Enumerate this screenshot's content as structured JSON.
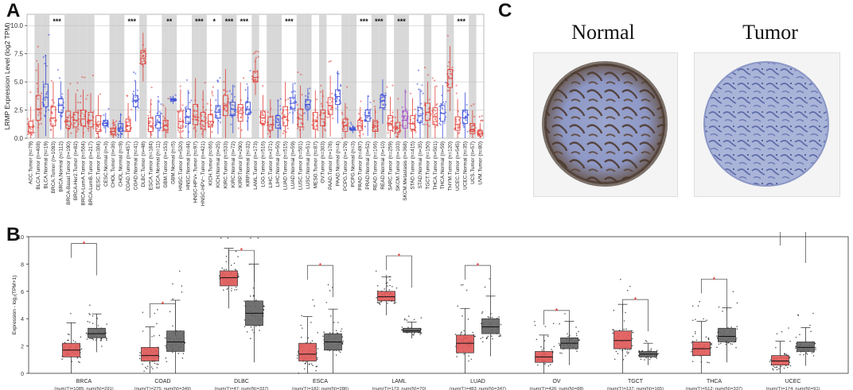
{
  "panels": {
    "A": "A",
    "B": "B",
    "C": "C"
  },
  "chart_data": [
    {
      "type": "box",
      "panel": "A",
      "ylabel": "LRMP Expression Level (log2 TPM)",
      "ylim": [
        0,
        11
      ],
      "yticks": [
        "0.0",
        "2.5",
        "5.0",
        "7.5",
        "10.0"
      ],
      "groups": [
        {
          "label": "ACC.Tumor (n=79)",
          "kind": "tumor",
          "median": 1.0,
          "q1": 0.5,
          "q3": 1.5,
          "shade": false,
          "sig": ""
        },
        {
          "label": "BLCA.Tumor (n=408)",
          "kind": "tumor",
          "median": 2.6,
          "q1": 1.6,
          "q3": 3.8,
          "shade": true,
          "sig": ""
        },
        {
          "label": "BLCA.Normal (n=19)",
          "kind": "normal",
          "median": 3.6,
          "q1": 2.8,
          "q3": 4.8,
          "shade": true,
          "sig": ""
        },
        {
          "label": "BRCA.Tumor (n=1093)",
          "kind": "tumor",
          "median": 1.8,
          "q1": 1.1,
          "q3": 2.8,
          "shade": false,
          "sig": "***"
        },
        {
          "label": "BRCA.Normal (n=112)",
          "kind": "normal",
          "median": 2.9,
          "q1": 2.3,
          "q3": 3.5,
          "shade": false,
          "sig": ""
        },
        {
          "label": "BRCA-Basal.Tumor (n=190)",
          "kind": "tumor",
          "median": 1.5,
          "q1": 0.9,
          "q3": 2.4,
          "shade": true,
          "sig": ""
        },
        {
          "label": "BRCA-Her2.Tumor (n=82)",
          "kind": "tumor",
          "median": 1.6,
          "q1": 1.0,
          "q3": 2.3,
          "shade": true,
          "sig": ""
        },
        {
          "label": "BRCA-LumA.Tumor (n=564)",
          "kind": "tumor",
          "median": 1.7,
          "q1": 1.1,
          "q3": 2.5,
          "shade": true,
          "sig": ""
        },
        {
          "label": "BRCA-LumB.Tumor (n=217)",
          "kind": "tumor",
          "median": 1.6,
          "q1": 1.0,
          "q3": 2.3,
          "shade": true,
          "sig": ""
        },
        {
          "label": "CESC.Tumor (n=304)",
          "kind": "tumor",
          "median": 1.2,
          "q1": 0.6,
          "q3": 2.0,
          "shade": false,
          "sig": ""
        },
        {
          "label": "CESC.Normal (n=3)",
          "kind": "normal",
          "median": 1.3,
          "q1": 1.1,
          "q3": 1.6,
          "shade": false,
          "sig": ""
        },
        {
          "label": "CHOL.Tumor (n=36)",
          "kind": "tumor",
          "median": 0.6,
          "q1": 0.3,
          "q3": 0.9,
          "shade": true,
          "sig": ""
        },
        {
          "label": "CHOL.Normal (n=9)",
          "kind": "normal",
          "median": 0.9,
          "q1": 0.6,
          "q3": 1.3,
          "shade": true,
          "sig": ""
        },
        {
          "label": "COAD.Tumor (n=457)",
          "kind": "tumor",
          "median": 1.1,
          "q1": 0.6,
          "q3": 1.7,
          "shade": false,
          "sig": "***"
        },
        {
          "label": "COAD.Normal (n=41)",
          "kind": "normal",
          "median": 3.3,
          "q1": 2.8,
          "q3": 3.8,
          "shade": false,
          "sig": ""
        },
        {
          "label": "DLBC.Tumor (n=48)",
          "kind": "tumor",
          "median": 7.1,
          "q1": 6.6,
          "q3": 7.8,
          "shade": true,
          "sig": ""
        },
        {
          "label": "ESCA.Tumor (n=184)",
          "kind": "tumor",
          "median": 1.1,
          "q1": 0.6,
          "q3": 1.8,
          "shade": false,
          "sig": ""
        },
        {
          "label": "ESCA.Normal (n=11)",
          "kind": "normal",
          "median": 1.4,
          "q1": 0.9,
          "q3": 2.0,
          "shade": false,
          "sig": ""
        },
        {
          "label": "GBM.Tumor (n=153)",
          "kind": "tumor",
          "median": 1.1,
          "q1": 0.7,
          "q3": 1.6,
          "shade": true,
          "sig": "**"
        },
        {
          "label": "GBM.Normal (n=5)",
          "kind": "normal",
          "median": 3.4,
          "q1": 3.3,
          "q3": 3.5,
          "shade": true,
          "sig": ""
        },
        {
          "label": "HNSC.Tumor (n=520)",
          "kind": "tumor",
          "median": 1.5,
          "q1": 0.9,
          "q3": 2.4,
          "shade": false,
          "sig": ""
        },
        {
          "label": "HNSC.Normal (n=44)",
          "kind": "normal",
          "median": 1.9,
          "q1": 1.3,
          "q3": 2.6,
          "shade": false,
          "sig": ""
        },
        {
          "label": "HNSC-HPV+.Tumor (n=97)",
          "kind": "tumor",
          "median": 1.9,
          "q1": 1.2,
          "q3": 3.0,
          "shade": true,
          "sig": "***"
        },
        {
          "label": "HNSC-HPV−.Tumor (n=421)",
          "kind": "tumor",
          "median": 1.5,
          "q1": 0.8,
          "q3": 2.3,
          "shade": true,
          "sig": ""
        },
        {
          "label": "KICH.Tumor (n=66)",
          "kind": "tumor",
          "median": 1.5,
          "q1": 1.0,
          "q3": 2.1,
          "shade": false,
          "sig": "*"
        },
        {
          "label": "KICH.Normal (n=25)",
          "kind": "normal",
          "median": 2.3,
          "q1": 1.8,
          "q3": 2.9,
          "shade": false,
          "sig": ""
        },
        {
          "label": "KIRC.Tumor (n=533)",
          "kind": "tumor",
          "median": 2.9,
          "q1": 2.0,
          "q3": 3.8,
          "shade": true,
          "sig": "***"
        },
        {
          "label": "KIRC.Normal (n=72)",
          "kind": "normal",
          "median": 2.6,
          "q1": 2.0,
          "q3": 3.2,
          "shade": true,
          "sig": ""
        },
        {
          "label": "KIRP.Tumor (n=290)",
          "kind": "tumor",
          "median": 2.2,
          "q1": 1.5,
          "q3": 3.0,
          "shade": false,
          "sig": "***"
        },
        {
          "label": "KIRP.Normal (n=32)",
          "kind": "normal",
          "median": 2.6,
          "q1": 2.1,
          "q3": 3.2,
          "shade": false,
          "sig": ""
        },
        {
          "label": "LAML.Tumor (n=173)",
          "kind": "tumor",
          "median": 5.4,
          "q1": 5.0,
          "q3": 5.9,
          "shade": true,
          "sig": ""
        },
        {
          "label": "LGG.Tumor (n=516)",
          "kind": "tumor",
          "median": 1.8,
          "q1": 1.3,
          "q3": 2.4,
          "shade": false,
          "sig": ""
        },
        {
          "label": "LIHC.Tumor (n=371)",
          "kind": "tumor",
          "median": 1.2,
          "q1": 0.7,
          "q3": 1.9,
          "shade": true,
          "sig": ""
        },
        {
          "label": "LIHC.Normal (n=50)",
          "kind": "normal",
          "median": 1.4,
          "q1": 0.9,
          "q3": 2.0,
          "shade": true,
          "sig": ""
        },
        {
          "label": "LUAD.Tumor (n=515)",
          "kind": "tumor",
          "median": 1.9,
          "q1": 1.1,
          "q3": 2.8,
          "shade": false,
          "sig": "***"
        },
        {
          "label": "LUAD.Normal (n=59)",
          "kind": "normal",
          "median": 3.1,
          "q1": 2.6,
          "q3": 3.6,
          "shade": false,
          "sig": ""
        },
        {
          "label": "LUSC.Tumor (n=501)",
          "kind": "tumor",
          "median": 1.7,
          "q1": 1.0,
          "q3": 2.6,
          "shade": true,
          "sig": ""
        },
        {
          "label": "LUSC.Normal (n=51)",
          "kind": "normal",
          "median": 3.0,
          "q1": 2.6,
          "q3": 3.4,
          "shade": true,
          "sig": ""
        },
        {
          "label": "MESO.Tumor (n=87)",
          "kind": "tumor",
          "median": 1.5,
          "q1": 0.8,
          "q3": 2.3,
          "shade": false,
          "sig": ""
        },
        {
          "label": "OV.Tumor (n=303)",
          "kind": "tumor",
          "median": 1.7,
          "q1": 1.1,
          "q3": 2.5,
          "shade": true,
          "sig": ""
        },
        {
          "label": "PAAD.Tumor (n=178)",
          "kind": "tumor",
          "median": 2.9,
          "q1": 2.1,
          "q3": 3.6,
          "shade": false,
          "sig": ""
        },
        {
          "label": "PAAD.Normal (n=4)",
          "kind": "normal",
          "median": 3.7,
          "q1": 3.0,
          "q3": 4.3,
          "shade": false,
          "sig": ""
        },
        {
          "label": "PCPG.Tumor (n=179)",
          "kind": "tumor",
          "median": 1.1,
          "q1": 0.6,
          "q3": 1.7,
          "shade": true,
          "sig": ""
        },
        {
          "label": "PCPG.Normal (n=3)",
          "kind": "normal",
          "median": 0.8,
          "q1": 0.7,
          "q3": 0.9,
          "shade": true,
          "sig": ""
        },
        {
          "label": "PRAD.Tumor (n=497)",
          "kind": "tumor",
          "median": 1.1,
          "q1": 0.7,
          "q3": 1.6,
          "shade": false,
          "sig": "***"
        },
        {
          "label": "PRAD.Normal (n=52)",
          "kind": "normal",
          "median": 2.0,
          "q1": 1.5,
          "q3": 2.5,
          "shade": false,
          "sig": ""
        },
        {
          "label": "READ.Tumor (n=166)",
          "kind": "tumor",
          "median": 1.0,
          "q1": 0.6,
          "q3": 1.5,
          "shade": true,
          "sig": "***"
        },
        {
          "label": "READ.Normal (n=10)",
          "kind": "normal",
          "median": 3.3,
          "q1": 2.7,
          "q3": 3.8,
          "shade": true,
          "sig": ""
        },
        {
          "label": "SARC.Tumor (n=259)",
          "kind": "tumor",
          "median": 1.3,
          "q1": 0.7,
          "q3": 2.0,
          "shade": false,
          "sig": ""
        },
        {
          "label": "SKCM.Tumor (n=103)",
          "kind": "tumor",
          "median": 0.9,
          "q1": 0.5,
          "q3": 1.4,
          "shade": true,
          "sig": "***"
        },
        {
          "label": "SKCM.Metastasis (n=368)",
          "kind": "metastasis",
          "median": 1.6,
          "q1": 0.9,
          "q3": 2.4,
          "shade": true,
          "sig": ""
        },
        {
          "label": "STAD.Tumor (n=415)",
          "kind": "tumor",
          "median": 1.3,
          "q1": 0.8,
          "q3": 2.0,
          "shade": false,
          "sig": ""
        },
        {
          "label": "STAD.Normal (n=35)",
          "kind": "normal",
          "median": 2.0,
          "q1": 1.4,
          "q3": 2.7,
          "shade": false,
          "sig": ""
        },
        {
          "label": "TGCT.Tumor (n=150)",
          "kind": "tumor",
          "median": 2.3,
          "q1": 1.6,
          "q3": 3.1,
          "shade": true,
          "sig": ""
        },
        {
          "label": "THCA.Tumor (n=501)",
          "kind": "tumor",
          "median": 1.9,
          "q1": 1.2,
          "q3": 2.7,
          "shade": false,
          "sig": ""
        },
        {
          "label": "THCA.Normal (n=59)",
          "kind": "normal",
          "median": 2.2,
          "q1": 1.5,
          "q3": 2.9,
          "shade": false,
          "sig": ""
        },
        {
          "label": "THYM.Tumor (n=120)",
          "kind": "tumor",
          "median": 5.3,
          "q1": 4.5,
          "q3": 6.1,
          "shade": true,
          "sig": ""
        },
        {
          "label": "UCEC.Tumor (n=545)",
          "kind": "tumor",
          "median": 1.2,
          "q1": 0.7,
          "q3": 1.9,
          "shade": false,
          "sig": "***"
        },
        {
          "label": "UCEC.Normal (n=35)",
          "kind": "normal",
          "median": 1.8,
          "q1": 1.3,
          "q3": 2.5,
          "shade": false,
          "sig": ""
        },
        {
          "label": "UCS.Tumor (n=57)",
          "kind": "tumor",
          "median": 0.8,
          "q1": 0.4,
          "q3": 1.3,
          "shade": true,
          "sig": ""
        },
        {
          "label": "UVM.Tumor (n=80)",
          "kind": "tumor",
          "median": 0.4,
          "q1": 0.2,
          "q3": 0.7,
          "shade": false,
          "sig": ""
        }
      ],
      "colors": {
        "tumor": "#e0403a",
        "normal": "#3d4fd8",
        "metastasis": "#a040c8",
        "shade": "#d8d8d8"
      }
    },
    {
      "type": "box",
      "panel": "B",
      "ylabel": "Expression - log₂(TPM+1)",
      "ylim": [
        0,
        10
      ],
      "yticks": [
        "0",
        "2",
        "4",
        "6",
        "8",
        "10"
      ],
      "significance": "*",
      "groups": [
        {
          "name": "BRCA",
          "note": "(num(T)=1085; num(N)=291)",
          "tumor": {
            "median": 1.7,
            "q1": 1.2,
            "q3": 2.2
          },
          "normal": {
            "median": 2.9,
            "q1": 2.6,
            "q3": 3.3
          },
          "bracket": 9.5
        },
        {
          "name": "COAD",
          "note": "(num(T)=275; num(N)=349)",
          "tumor": {
            "median": 1.3,
            "q1": 0.9,
            "q3": 1.9
          },
          "normal": {
            "median": 2.3,
            "q1": 1.6,
            "q3": 3.1
          },
          "bracket": 5.1
        },
        {
          "name": "DLBC",
          "note": "(num(T)=47; num(N)=337)",
          "tumor": {
            "median": 7.0,
            "q1": 6.4,
            "q3": 7.5
          },
          "normal": {
            "median": 4.4,
            "q1": 3.5,
            "q3": 5.3
          },
          "bracket": 9.0
        },
        {
          "name": "ESCA",
          "note": "(num(T)=182; num(N)=286)",
          "tumor": {
            "median": 1.4,
            "q1": 0.9,
            "q3": 2.2
          },
          "normal": {
            "median": 2.3,
            "q1": 1.7,
            "q3": 2.9
          },
          "bracket": 7.9
        },
        {
          "name": "LAML",
          "note": "(num(T)=173; num(N)=70)",
          "tumor": {
            "median": 5.6,
            "q1": 5.3,
            "q3": 6.0
          },
          "normal": {
            "median": 3.1,
            "q1": 3.0,
            "q3": 3.3
          },
          "bracket": 8.6
        },
        {
          "name": "LUAD",
          "note": "(num(T)=483; num(N)=347)",
          "tumor": {
            "median": 2.2,
            "q1": 1.5,
            "q3": 2.8
          },
          "normal": {
            "median": 3.4,
            "q1": 2.9,
            "q3": 4.0
          },
          "bracket": 7.9
        },
        {
          "name": "OV",
          "note": "(num(T)=426; num(N)=88)",
          "tumor": {
            "median": 1.2,
            "q1": 0.8,
            "q3": 1.6
          },
          "normal": {
            "median": 2.2,
            "q1": 1.8,
            "q3": 2.6
          },
          "bracket": 4.6
        },
        {
          "name": "TGCT",
          "note": "(num(T)=137; num(N)=165)",
          "tumor": {
            "median": 2.4,
            "q1": 1.8,
            "q3": 3.1
          },
          "normal": {
            "median": 1.4,
            "q1": 1.2,
            "q3": 1.6
          },
          "bracket": 5.4
        },
        {
          "name": "THCA",
          "note": "(num(T)=512; num(N)=337)",
          "tumor": {
            "median": 1.8,
            "q1": 1.3,
            "q3": 2.3
          },
          "normal": {
            "median": 2.7,
            "q1": 2.3,
            "q3": 3.3
          },
          "bracket": 6.9
        },
        {
          "name": "UCEC",
          "note": "(num(T)=174; num(N)=91)",
          "tumor": {
            "median": 0.9,
            "q1": 0.6,
            "q3": 1.3
          },
          "normal": {
            "median": 1.9,
            "q1": 1.6,
            "q3": 2.3
          },
          "bracket": 10.4
        }
      ],
      "colors": {
        "tumor": "#e05a5a",
        "normal": "#666666"
      }
    }
  ],
  "ihc": {
    "normal_label": "Normal",
    "tumor_label": "Tumor"
  }
}
